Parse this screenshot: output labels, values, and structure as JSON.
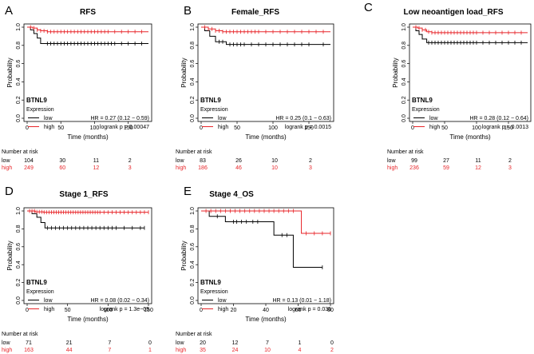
{
  "colors": {
    "low": "#000000",
    "high": "#e8262a",
    "axis": "#000000"
  },
  "chart_data": [
    {
      "type": "line",
      "panel_letter": "A",
      "title": "RFS",
      "xlabel": "Time (months)",
      "ylabel": "Probability",
      "xlim": [
        0,
        180
      ],
      "ylim": [
        0,
        1
      ],
      "x_ticks": [
        0,
        50,
        100,
        150
      ],
      "y_ticks": [
        0.0,
        0.2,
        0.4,
        0.6,
        0.8,
        1.0
      ],
      "y_tick_labels": [
        "0.0",
        "0.2",
        "0.4",
        "0.6",
        "0.8",
        "1.0"
      ],
      "gene": "BTNL9",
      "legend_title": "Expression",
      "hr_text": "HR = 0.27 (0.12 − 0.59)",
      "logrank_text": "logrank p = 0.00047",
      "risk_title": "Number at risk",
      "series": [
        {
          "name": "low",
          "color": "low",
          "steps": [
            [
              0,
              1.0
            ],
            [
              5,
              0.97
            ],
            [
              10,
              0.93
            ],
            [
              15,
              0.88
            ],
            [
              20,
              0.82
            ],
            [
              30,
              0.82
            ],
            [
              180,
              0.82
            ]
          ],
          "censors": [
            30,
            35,
            40,
            45,
            50,
            55,
            60,
            65,
            70,
            75,
            80,
            85,
            90,
            95,
            100,
            105,
            110,
            115,
            120,
            125,
            130,
            140,
            150,
            160,
            170
          ],
          "at_risk": [
            "104",
            "30",
            "11",
            "2"
          ]
        },
        {
          "name": "high",
          "color": "high",
          "steps": [
            [
              0,
              1.0
            ],
            [
              8,
              0.99
            ],
            [
              15,
              0.97
            ],
            [
              20,
              0.96
            ],
            [
              30,
              0.95
            ],
            [
              180,
              0.95
            ]
          ],
          "censors": [
            5,
            10,
            15,
            20,
            25,
            30,
            35,
            40,
            45,
            50,
            55,
            60,
            65,
            70,
            75,
            80,
            85,
            90,
            95,
            100,
            105,
            110,
            115,
            120,
            130,
            140,
            150,
            160,
            170
          ],
          "at_risk": [
            "249",
            "60",
            "12",
            "3"
          ]
        }
      ]
    },
    {
      "type": "line",
      "panel_letter": "B",
      "title": "Female_RFS",
      "xlabel": "Time (months)",
      "ylabel": "Probability",
      "xlim": [
        0,
        180
      ],
      "ylim": [
        0,
        1
      ],
      "x_ticks": [
        0,
        50,
        100,
        150
      ],
      "y_ticks": [
        0.0,
        0.2,
        0.4,
        0.6,
        0.8,
        1.0
      ],
      "y_tick_labels": [
        "0.0",
        "0.2",
        "0.4",
        "0.6",
        "0.8",
        "1.0"
      ],
      "gene": "BTNL9",
      "legend_title": "Expression",
      "hr_text": "HR = 0.25 (0.1 − 0.63)",
      "logrank_text": "logrank p = 0.0015",
      "risk_title": "Number at risk",
      "series": [
        {
          "name": "low",
          "color": "low",
          "steps": [
            [
              0,
              1.0
            ],
            [
              5,
              0.96
            ],
            [
              12,
              0.9
            ],
            [
              20,
              0.84
            ],
            [
              35,
              0.81
            ],
            [
              180,
              0.81
            ]
          ],
          "censors": [
            25,
            30,
            40,
            45,
            50,
            55,
            60,
            70,
            80,
            90,
            100,
            110,
            120,
            130,
            140,
            150,
            170
          ],
          "at_risk": [
            "83",
            "26",
            "10",
            "2"
          ]
        },
        {
          "name": "high",
          "color": "high",
          "steps": [
            [
              0,
              1.0
            ],
            [
              10,
              0.98
            ],
            [
              20,
              0.96
            ],
            [
              30,
              0.95
            ],
            [
              180,
              0.95
            ]
          ],
          "censors": [
            5,
            10,
            15,
            20,
            25,
            30,
            35,
            40,
            45,
            50,
            55,
            60,
            65,
            70,
            75,
            80,
            90,
            100,
            110,
            120,
            130,
            140,
            150,
            160,
            170
          ],
          "at_risk": [
            "186",
            "46",
            "10",
            "3"
          ]
        }
      ]
    },
    {
      "type": "line",
      "panel_letter": "C",
      "title": "Low neoantigen load_RFS",
      "xlabel": "Time (months)",
      "ylabel": "Probability",
      "xlim": [
        0,
        180
      ],
      "ylim": [
        0,
        1
      ],
      "x_ticks": [
        0,
        50,
        100,
        150
      ],
      "y_ticks": [
        0.0,
        0.2,
        0.4,
        0.6,
        0.8,
        1.0
      ],
      "y_tick_labels": [
        "0.0",
        "0.2",
        "0.4",
        "0.6",
        "0.8",
        "1.0"
      ],
      "gene": "BTNL9",
      "legend_title": "Expression",
      "hr_text": "HR = 0.28 (0.12 − 0.64)",
      "logrank_text": "logrank p = 0.0013",
      "risk_title": "Number at risk",
      "series": [
        {
          "name": "low",
          "color": "low",
          "steps": [
            [
              0,
              1.0
            ],
            [
              5,
              0.96
            ],
            [
              10,
              0.92
            ],
            [
              15,
              0.87
            ],
            [
              22,
              0.83
            ],
            [
              180,
              0.83
            ]
          ],
          "censors": [
            25,
            30,
            35,
            40,
            45,
            50,
            55,
            60,
            65,
            70,
            75,
            80,
            85,
            90,
            95,
            100,
            110,
            120,
            130,
            140,
            150,
            160,
            170
          ],
          "at_risk": [
            "99",
            "27",
            "11",
            "2"
          ]
        },
        {
          "name": "high",
          "color": "high",
          "steps": [
            [
              0,
              1.0
            ],
            [
              8,
              0.99
            ],
            [
              15,
              0.97
            ],
            [
              22,
              0.95
            ],
            [
              30,
              0.94
            ],
            [
              180,
              0.94
            ]
          ],
          "censors": [
            5,
            10,
            15,
            20,
            25,
            30,
            35,
            40,
            45,
            50,
            55,
            60,
            65,
            70,
            75,
            80,
            85,
            90,
            95,
            100,
            110,
            120,
            130,
            140,
            150,
            160,
            170
          ],
          "at_risk": [
            "236",
            "59",
            "12",
            "3"
          ]
        }
      ]
    },
    {
      "type": "line",
      "panel_letter": "D",
      "title": "Stage 1_RFS",
      "xlabel": "Time (months)",
      "ylabel": "Probability",
      "xlim": [
        0,
        150
      ],
      "ylim": [
        0,
        1
      ],
      "x_ticks": [
        0,
        50,
        100,
        150
      ],
      "y_ticks": [
        0.0,
        0.2,
        0.4,
        0.6,
        0.8,
        1.0
      ],
      "y_tick_labels": [
        "0.0",
        "0.2",
        "0.4",
        "0.6",
        "0.8",
        "1.0"
      ],
      "gene": "BTNL9",
      "legend_title": "Expression",
      "hr_text": "HR = 0.08 (0.02 − 0.34)",
      "logrank_text": "logrank p = 1.3e−05",
      "risk_title": "Number at risk",
      "series": [
        {
          "name": "low",
          "color": "low",
          "steps": [
            [
              0,
              1.0
            ],
            [
              6,
              0.97
            ],
            [
              12,
              0.93
            ],
            [
              17,
              0.87
            ],
            [
              22,
              0.81
            ],
            [
              145,
              0.81
            ]
          ],
          "censors": [
            25,
            30,
            35,
            40,
            45,
            50,
            55,
            60,
            65,
            70,
            75,
            80,
            85,
            90,
            95,
            100,
            105,
            110,
            120,
            130,
            140,
            145
          ],
          "at_risk": [
            "71",
            "21",
            "7",
            "0"
          ]
        },
        {
          "name": "high",
          "color": "high",
          "steps": [
            [
              0,
              1.0
            ],
            [
              10,
              0.99
            ],
            [
              20,
              0.985
            ],
            [
              150,
              0.985
            ]
          ],
          "censors": [
            3,
            6,
            9,
            12,
            15,
            18,
            21,
            24,
            27,
            30,
            33,
            36,
            39,
            42,
            45,
            48,
            51,
            54,
            57,
            60,
            63,
            66,
            69,
            72,
            75,
            78,
            81,
            84,
            87,
            90,
            95,
            100,
            105,
            110,
            115,
            120,
            125,
            130,
            135,
            140,
            145,
            150
          ],
          "at_risk": [
            "163",
            "44",
            "7",
            "1"
          ]
        }
      ]
    },
    {
      "type": "line",
      "panel_letter": "E",
      "title": "Stage 4_OS",
      "xlabel": "Time (months)",
      "ylabel": "Probability",
      "xlim": [
        0,
        80
      ],
      "ylim": [
        0,
        1
      ],
      "x_ticks": [
        0,
        20,
        40,
        60,
        80
      ],
      "y_ticks": [
        0.0,
        0.2,
        0.4,
        0.6,
        0.8,
        1.0
      ],
      "y_tick_labels": [
        "0.0",
        "0.2",
        "0.4",
        "0.6",
        "0.8",
        "1.0"
      ],
      "gene": "BTNL9",
      "legend_title": "Expression",
      "hr_text": "HR = 0.13 (0.01 − 1.18)",
      "logrank_text": "logrank p = 0.035",
      "risk_title": "Number at risk",
      "series": [
        {
          "name": "low",
          "color": "low",
          "steps": [
            [
              0,
              1.0
            ],
            [
              5,
              0.94
            ],
            [
              15,
              0.88
            ],
            [
              45,
              0.73
            ],
            [
              57,
              0.37
            ],
            [
              75,
              0.37
            ]
          ],
          "censors": [
            10,
            20,
            22,
            25,
            28,
            32,
            35,
            50,
            53,
            75
          ],
          "at_risk": [
            "20",
            "12",
            "7",
            "1",
            "0"
          ]
        },
        {
          "name": "high",
          "color": "high",
          "steps": [
            [
              0,
              1.0
            ],
            [
              60,
              1.0
            ],
            [
              62,
              0.75
            ],
            [
              80,
              0.75
            ]
          ],
          "censors": [
            3,
            6,
            9,
            12,
            15,
            18,
            21,
            24,
            27,
            30,
            33,
            36,
            39,
            42,
            45,
            48,
            51,
            54,
            57,
            65,
            70,
            75,
            80
          ],
          "at_risk": [
            "35",
            "24",
            "10",
            "4",
            "2"
          ]
        }
      ]
    }
  ]
}
